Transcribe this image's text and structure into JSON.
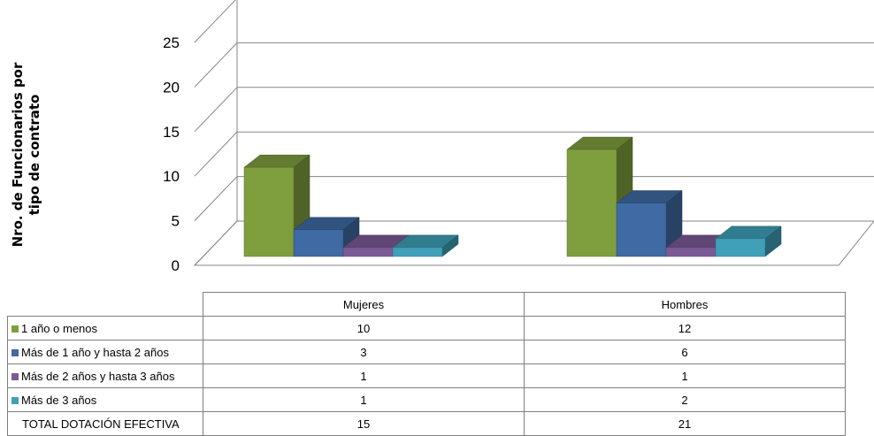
{
  "chart_data": {
    "type": "bar",
    "title": "",
    "ylabel": "Nro. de Funcionarios por tipo de contrato",
    "xlabel": "",
    "ylim": [
      0,
      25
    ],
    "yticks": [
      "0",
      "5",
      "10",
      "15",
      "20",
      "25"
    ],
    "grid": true,
    "legend": "data-table-below",
    "categories": [
      "Mujeres",
      "Hombres"
    ],
    "series": [
      {
        "name": "1 año o menos",
        "values": [
          10,
          12
        ],
        "color": "#7f9f3f"
      },
      {
        "name": "Más de 1 año y hasta 2 años",
        "values": [
          3,
          6
        ],
        "color": "#3f6aa3"
      },
      {
        "name": "Más de 2 años y hasta 3 años",
        "values": [
          1,
          1
        ],
        "color": "#7b5a96"
      },
      {
        "name": "Más de 3 años",
        "values": [
          1,
          2
        ],
        "color": "#3fa0b8"
      }
    ],
    "totals": {
      "label": "TOTAL DOTACIÓN EFECTIVA",
      "values": [
        "15",
        "21"
      ]
    }
  }
}
